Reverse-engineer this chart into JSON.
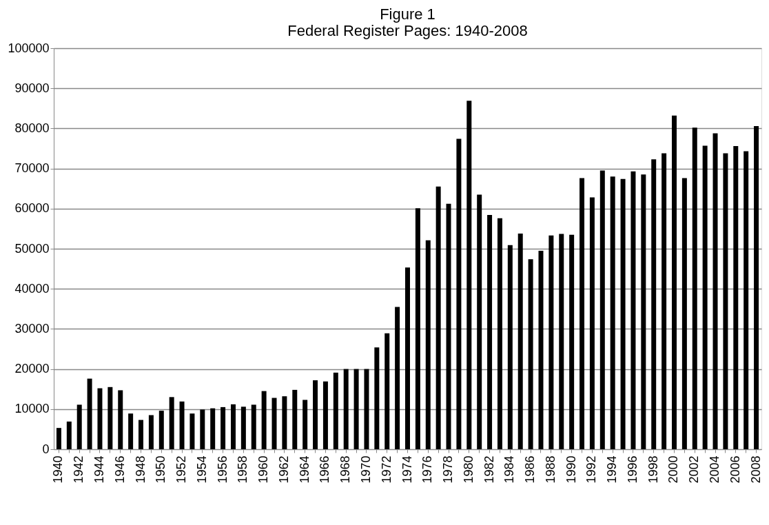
{
  "chart_data": {
    "type": "bar",
    "title": "Figure 1",
    "subtitle": "Federal Register Pages: 1940-2008",
    "categories": [
      "1940",
      null,
      "1942",
      null,
      "1944",
      null,
      "1946",
      null,
      "1948",
      null,
      "1950",
      null,
      "1952",
      null,
      "1954",
      null,
      "1956",
      null,
      "1958",
      null,
      "1960",
      null,
      "1962",
      null,
      "1964",
      null,
      "1966",
      null,
      "1968",
      null,
      "1970",
      null,
      "1972",
      null,
      "1974",
      null,
      "1976",
      null,
      "1978",
      null,
      "1980",
      null,
      "1982",
      null,
      "1984",
      null,
      "1986",
      null,
      "1988",
      null,
      "1990",
      null,
      "1992",
      null,
      "1994",
      null,
      "1996",
      null,
      "1998",
      null,
      "2000",
      null,
      "2002",
      null,
      "2004",
      null,
      "2006",
      null,
      "2008"
    ],
    "values": [
      5300,
      6900,
      11100,
      17600,
      15200,
      15500,
      14700,
      8900,
      7300,
      8500,
      9600,
      13000,
      11900,
      8900,
      9900,
      10200,
      10500,
      11200,
      10600,
      11100,
      14500,
      12800,
      13200,
      14800,
      12300,
      17200,
      16900,
      19100,
      20000,
      20000,
      20000,
      25400,
      28900,
      35500,
      45300,
      60100,
      52100,
      65500,
      61200,
      77400,
      86900,
      63500,
      58400,
      57600,
      50900,
      53800,
      47400,
      49500,
      53300,
      53700,
      53500,
      67600,
      62800,
      69500,
      68000,
      67400,
      69300,
      68500,
      72300,
      73800,
      83200,
      67600,
      80200,
      75700,
      78800,
      73800,
      75600,
      74300,
      80600
    ],
    "color": "#000000",
    "ylim": [
      0,
      100000
    ],
    "yticks": [
      0,
      10000,
      20000,
      30000,
      40000,
      50000,
      60000,
      70000,
      80000,
      90000,
      100000
    ],
    "grid": "y"
  }
}
